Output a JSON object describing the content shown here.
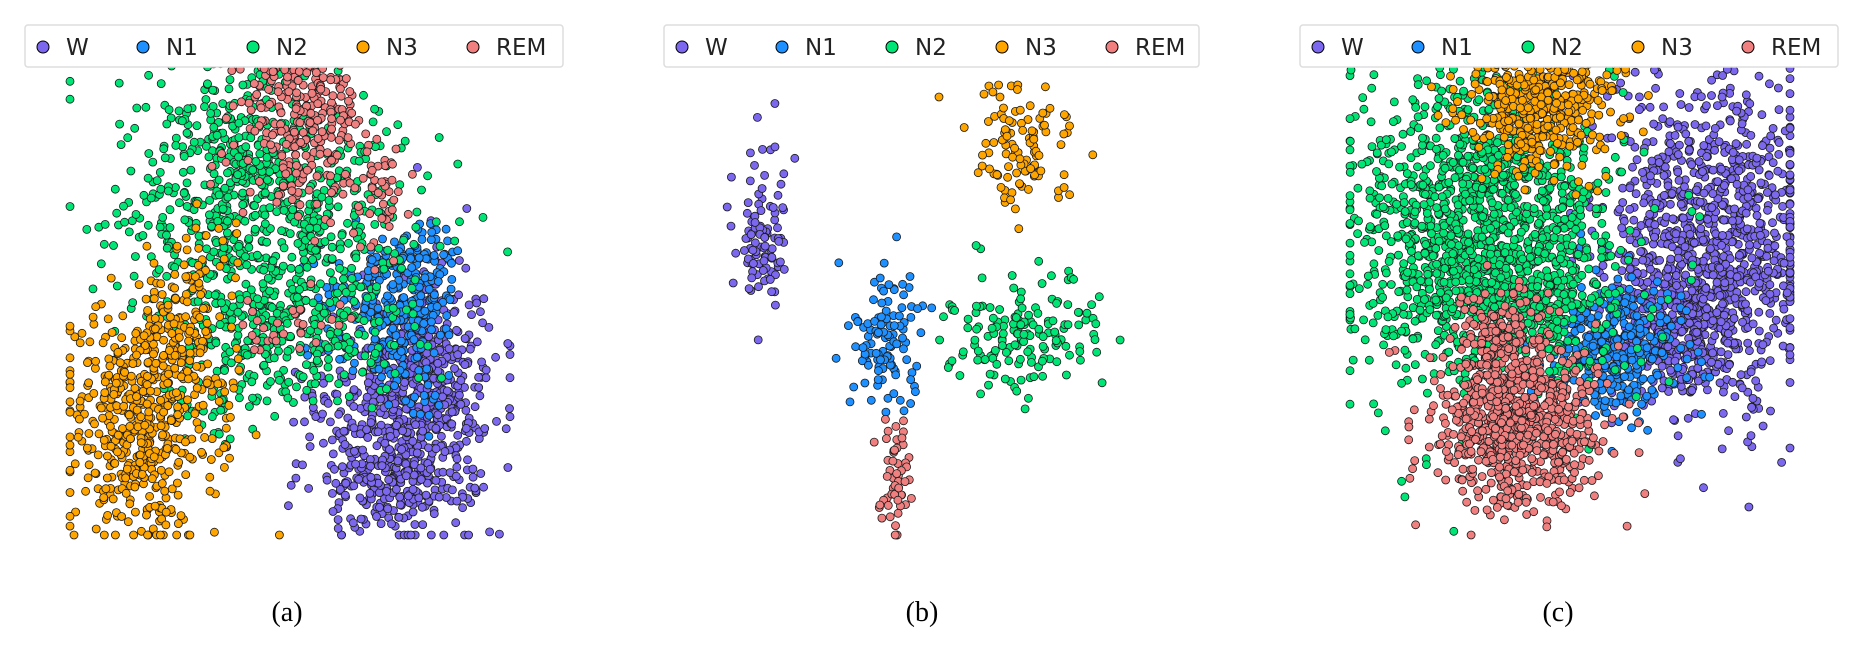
{
  "chart_data": [
    {
      "type": "scatter",
      "caption": "(a)",
      "legend": {
        "placement": "top",
        "entries": [
          "W",
          "N1",
          "N2",
          "N3",
          "REM"
        ]
      },
      "grid": false,
      "axes_visible": false,
      "series": [
        {
          "name": "W",
          "color": "#7b68ee",
          "clusters": [
            [
              0.76,
              0.76,
              0.1,
              0.12,
              450
            ],
            [
              0.82,
              0.62,
              0.06,
              0.1,
              250
            ],
            [
              0.7,
              0.88,
              0.08,
              0.06,
              150
            ]
          ]
        },
        {
          "name": "N1",
          "color": "#1e90ff",
          "clusters": [
            [
              0.7,
              0.52,
              0.07,
              0.08,
              150
            ],
            [
              0.8,
              0.46,
              0.05,
              0.06,
              100
            ],
            [
              0.78,
              0.65,
              0.05,
              0.06,
              60
            ]
          ]
        },
        {
          "name": "N2",
          "color": "#00e676",
          "clusters": [
            [
              0.45,
              0.35,
              0.17,
              0.14,
              650
            ],
            [
              0.5,
              0.58,
              0.12,
              0.08,
              250
            ],
            [
              0.38,
              0.18,
              0.1,
              0.07,
              150
            ],
            [
              0.32,
              0.72,
              0.06,
              0.05,
              40
            ]
          ]
        },
        {
          "name": "N3",
          "color": "#ffa500",
          "clusters": [
            [
              0.15,
              0.77,
              0.09,
              0.12,
              450
            ],
            [
              0.24,
              0.62,
              0.06,
              0.07,
              150
            ],
            [
              0.3,
              0.45,
              0.05,
              0.05,
              40
            ]
          ]
        },
        {
          "name": "REM",
          "color": "#f08080",
          "clusters": [
            [
              0.53,
              0.12,
              0.07,
              0.09,
              280
            ],
            [
              0.7,
              0.28,
              0.03,
              0.06,
              50
            ],
            [
              0.47,
              0.02,
              0.04,
              0.03,
              30
            ],
            [
              0.5,
              0.56,
              0.06,
              0.03,
              30
            ]
          ]
        }
      ]
    },
    {
      "type": "scatter",
      "caption": "(b)",
      "legend": {
        "placement": "top",
        "entries": [
          "W",
          "N1",
          "N2",
          "N3",
          "REM"
        ]
      },
      "grid": false,
      "axes_visible": false,
      "series": [
        {
          "name": "W",
          "color": "#7b68ee",
          "clusters": [
            [
              0.1,
              0.34,
              0.03,
              0.085,
              100
            ]
          ]
        },
        {
          "name": "N1",
          "color": "#1e90ff",
          "clusters": [
            [
              0.39,
              0.58,
              0.045,
              0.075,
              110
            ]
          ]
        },
        {
          "name": "N2",
          "color": "#00e676",
          "clusters": [
            [
              0.73,
              0.55,
              0.085,
              0.07,
              160
            ]
          ]
        },
        {
          "name": "N3",
          "color": "#ffa500",
          "clusters": [
            [
              0.72,
              0.13,
              0.055,
              0.07,
              110
            ]
          ]
        },
        {
          "name": "REM",
          "color": "#f08080",
          "clusters": [
            [
              0.42,
              0.88,
              0.02,
              0.07,
              55
            ]
          ]
        }
      ]
    },
    {
      "type": "scatter",
      "caption": "(c)",
      "legend": {
        "placement": "top",
        "entries": [
          "W",
          "N1",
          "N2",
          "N3",
          "REM"
        ]
      },
      "grid": false,
      "axes_visible": false,
      "series": [
        {
          "name": "W",
          "color": "#7b68ee",
          "clusters": [
            [
              0.82,
              0.38,
              0.12,
              0.17,
              1000
            ],
            [
              0.74,
              0.58,
              0.08,
              0.08,
              300
            ]
          ]
        },
        {
          "name": "N1",
          "color": "#1e90ff",
          "clusters": [
            [
              0.58,
              0.62,
              0.08,
              0.07,
              350
            ]
          ]
        },
        {
          "name": "N2",
          "color": "#00e676",
          "clusters": [
            [
              0.3,
              0.35,
              0.15,
              0.17,
              1300
            ],
            [
              0.4,
              0.5,
              0.1,
              0.08,
              300
            ]
          ]
        },
        {
          "name": "N3",
          "color": "#ffa500",
          "clusters": [
            [
              0.44,
              0.1,
              0.09,
              0.07,
              450
            ]
          ]
        },
        {
          "name": "REM",
          "color": "#f08080",
          "clusters": [
            [
              0.38,
              0.76,
              0.09,
              0.09,
              800
            ],
            [
              0.34,
              0.58,
              0.05,
              0.05,
              100
            ]
          ]
        }
      ]
    }
  ]
}
